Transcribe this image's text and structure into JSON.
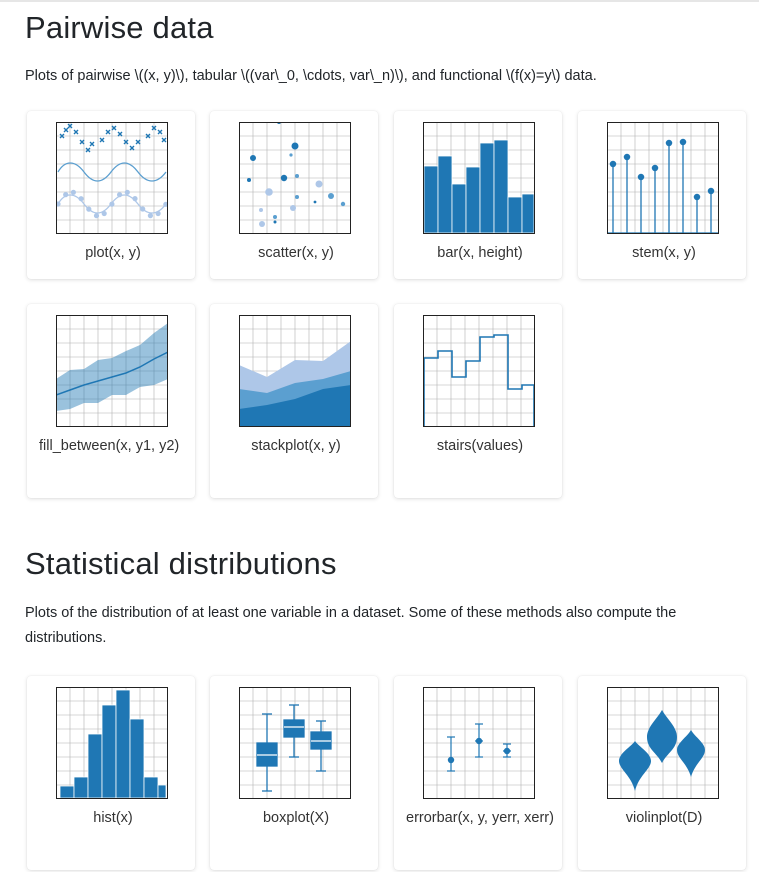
{
  "sections": [
    {
      "title": "Pairwise data",
      "description": "Plots of pairwise \\((x, y)\\), tabular \\((var\\_0, \\cdots, var\\_n)\\), and functional \\(f(x)=y\\) data.",
      "items": [
        {
          "label": "plot(x, y)",
          "icon": "plot-thumbnail-icon"
        },
        {
          "label": "scatter(x, y)",
          "icon": "scatter-thumbnail-icon"
        },
        {
          "label": "bar(x, height)",
          "icon": "bar-thumbnail-icon"
        },
        {
          "label": "stem(x, y)",
          "icon": "stem-thumbnail-icon"
        },
        {
          "label": "fill_between(x, y1, y2)",
          "icon": "fill-between-thumbnail-icon"
        },
        {
          "label": "stackplot(x, y)",
          "icon": "stackplot-thumbnail-icon"
        },
        {
          "label": "stairs(values)",
          "icon": "stairs-thumbnail-icon"
        }
      ]
    },
    {
      "title": "Statistical distributions",
      "description": "Plots of the distribution of at least one variable in a dataset. Some of these methods also compute the distributions.",
      "items": [
        {
          "label": "hist(x)",
          "icon": "hist-thumbnail-icon"
        },
        {
          "label": "boxplot(X)",
          "icon": "boxplot-thumbnail-icon"
        },
        {
          "label": "errorbar(x, y, yerr, xerr)",
          "icon": "errorbar-thumbnail-icon"
        },
        {
          "label": "violinplot(D)",
          "icon": "violinplot-thumbnail-icon"
        }
      ]
    }
  ],
  "colors": {
    "blue": "#1f77b4",
    "light_blue": "#aec7e8",
    "mid_blue": "#5b9fd0",
    "grid": "#b0b0b0",
    "card_shadow": "#d0d0d0"
  }
}
